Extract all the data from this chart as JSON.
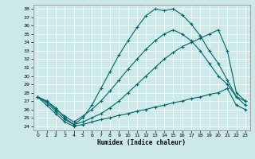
{
  "title": "",
  "xlabel": "Humidex (Indice chaleur)",
  "bg_color": "#cce8e8",
  "line_color": "#006666",
  "xlim": [
    -0.5,
    23.5
  ],
  "ylim": [
    23.5,
    38.5
  ],
  "xticks": [
    0,
    1,
    2,
    3,
    4,
    5,
    6,
    7,
    8,
    9,
    10,
    11,
    12,
    13,
    14,
    15,
    16,
    17,
    18,
    19,
    20,
    21,
    22,
    23
  ],
  "yticks": [
    24,
    25,
    26,
    27,
    28,
    29,
    30,
    31,
    32,
    33,
    34,
    35,
    36,
    37,
    38
  ],
  "lines": [
    {
      "x": [
        0,
        1,
        2,
        3,
        4,
        5,
        6,
        7,
        8,
        9,
        10,
        11,
        12,
        13,
        14,
        15,
        16,
        17,
        18,
        19,
        20,
        21,
        22,
        23
      ],
      "y": [
        27.5,
        27.0,
        26.2,
        25.0,
        24.2,
        25.0,
        26.5,
        28.5,
        30.5,
        32.5,
        34.2,
        35.8,
        37.2,
        38.0,
        37.8,
        38.0,
        37.3,
        36.2,
        34.8,
        33.0,
        31.5,
        29.5,
        27.5,
        27.0
      ]
    },
    {
      "x": [
        0,
        1,
        2,
        3,
        4,
        5,
        6,
        7,
        8,
        9,
        10,
        11,
        12,
        13,
        14,
        15,
        16,
        17,
        18,
        19,
        20,
        21,
        22,
        23
      ],
      "y": [
        27.5,
        26.5,
        25.5,
        24.5,
        24.0,
        24.2,
        24.5,
        24.8,
        25.0,
        25.3,
        25.5,
        25.8,
        26.0,
        26.3,
        26.5,
        26.8,
        27.0,
        27.3,
        27.5,
        27.8,
        28.0,
        28.5,
        26.5,
        26.0
      ]
    },
    {
      "x": [
        0,
        1,
        2,
        3,
        4,
        5,
        6,
        7,
        8,
        9,
        10,
        11,
        12,
        13,
        14,
        15,
        16,
        17,
        18,
        19,
        20,
        21,
        22,
        23
      ],
      "y": [
        27.5,
        26.8,
        25.8,
        24.8,
        24.2,
        24.5,
        25.0,
        25.5,
        26.2,
        27.0,
        28.0,
        29.0,
        30.0,
        31.0,
        32.0,
        32.8,
        33.5,
        34.0,
        34.5,
        35.0,
        35.5,
        33.0,
        28.0,
        27.0
      ]
    },
    {
      "x": [
        0,
        1,
        2,
        3,
        4,
        5,
        6,
        7,
        8,
        9,
        10,
        11,
        12,
        13,
        14,
        15,
        16,
        17,
        18,
        19,
        20,
        21,
        22,
        23
      ],
      "y": [
        27.5,
        27.0,
        26.0,
        25.2,
        24.5,
        25.2,
        26.0,
        27.0,
        28.2,
        29.5,
        30.8,
        32.0,
        33.2,
        34.2,
        35.0,
        35.5,
        35.0,
        34.2,
        33.0,
        31.5,
        30.0,
        29.0,
        27.5,
        26.5
      ]
    }
  ]
}
